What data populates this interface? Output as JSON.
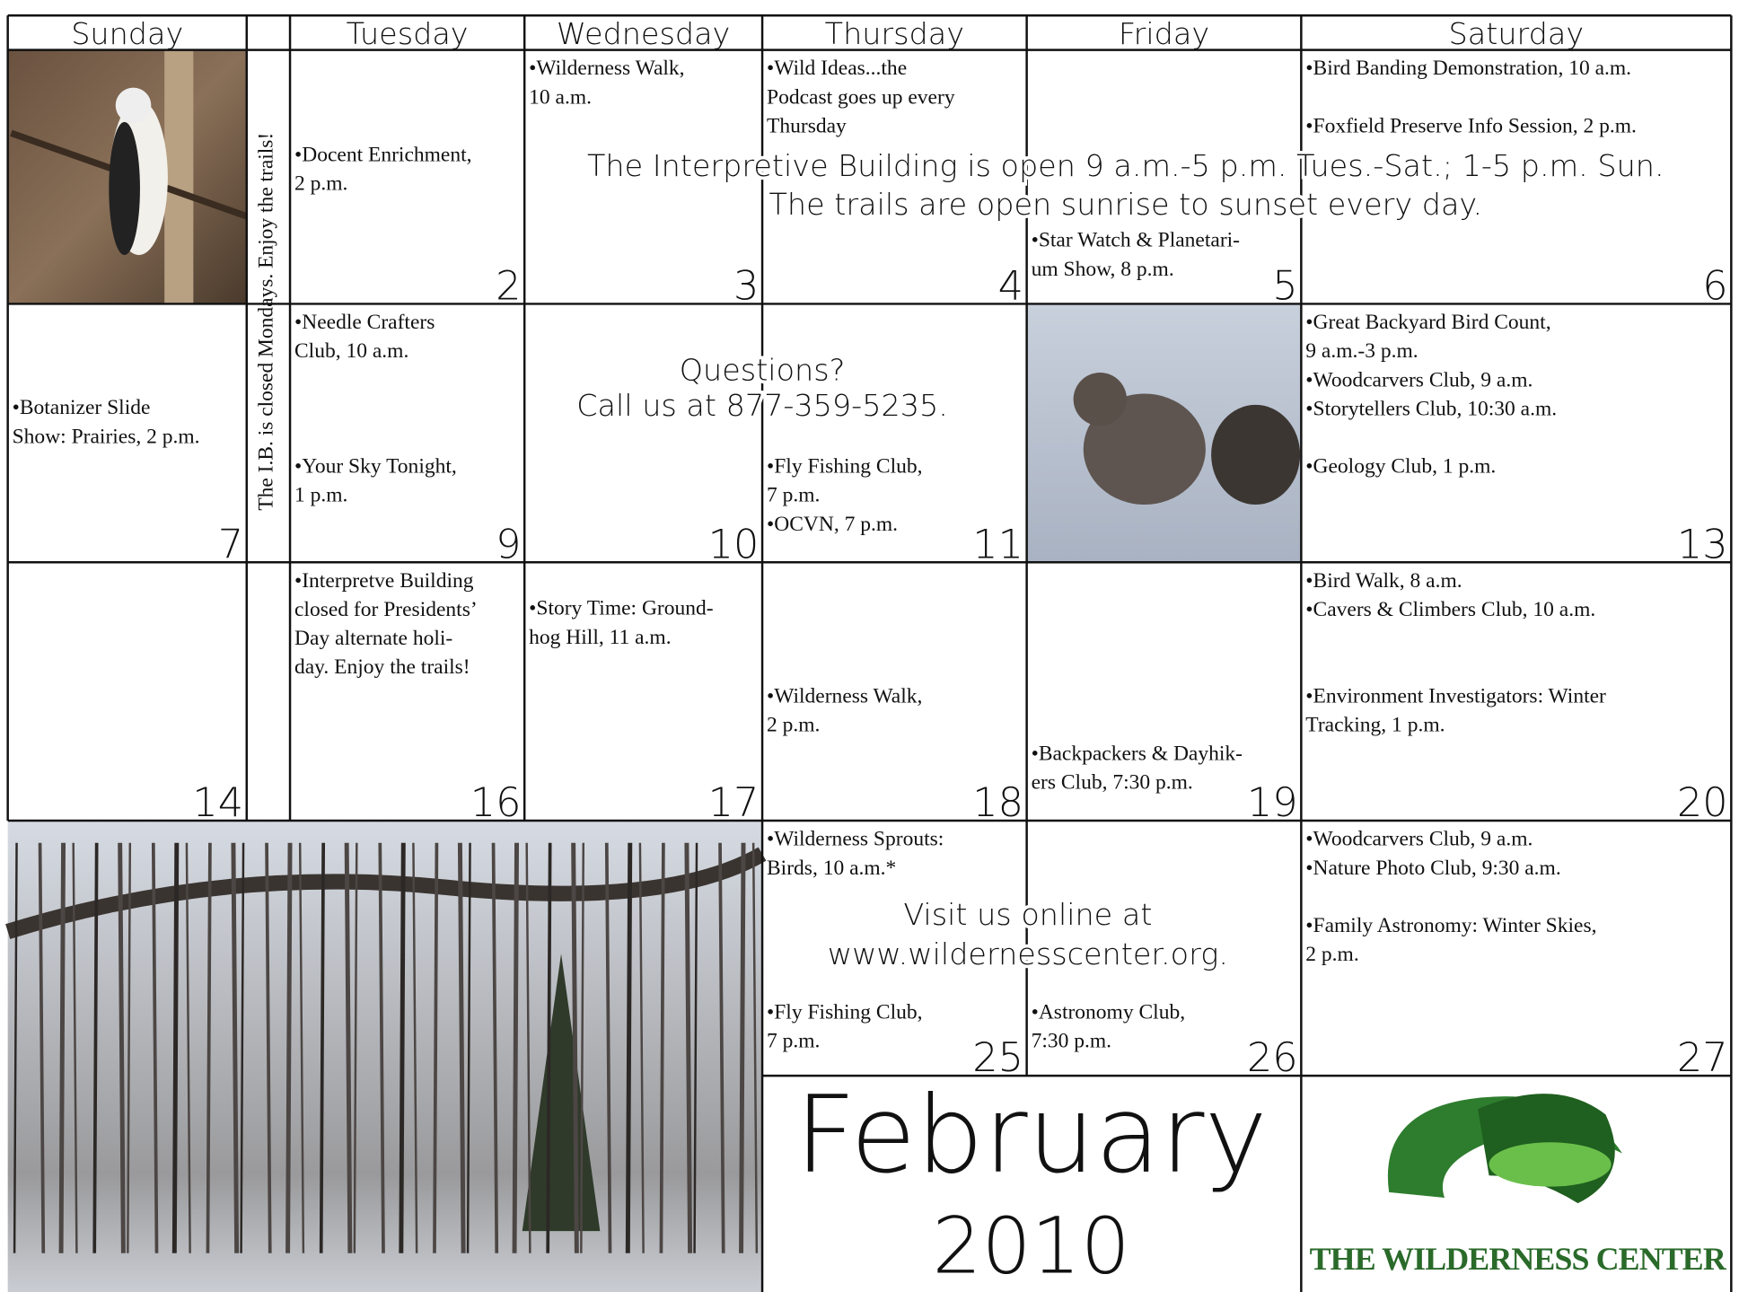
{
  "headers": [
    "Sunday",
    "Tuesday",
    "Wednesday",
    "Thursday",
    "Friday",
    "Saturday"
  ],
  "side_note": "The I.B. is closed Mondays. Enjoy the trails!",
  "cells": [
    {
      "day": 2,
      "events": [
        [
          "•Docent Enrichment,",
          "2 p.m."
        ]
      ]
    },
    {
      "day": 3,
      "events": [
        [
          "•Wilderness Walk,",
          "10 a.m."
        ]
      ]
    },
    {
      "day": 4,
      "events": [
        [
          "•Wild Ideas...the",
          "Podcast goes up every",
          "Thursday"
        ]
      ]
    },
    {
      "day": 5,
      "events": [
        [
          "•Star Watch & Planetari-",
          "um Show, 8 p.m."
        ]
      ]
    },
    {
      "day": 6,
      "events": [
        [
          "•Bird Banding Demonstration, 10 a.m."
        ],
        [
          "•Foxfield Preserve Info Session, 2 p.m."
        ]
      ]
    },
    {
      "day": 7,
      "events": [
        [
          "•Botanizer Slide",
          "Show: Prairies, 2 p.m."
        ]
      ]
    },
    {
      "day": 9,
      "events": [
        [
          "•Needle Crafters",
          "Club, 10 a.m."
        ],
        [
          "•Your Sky Tonight,",
          "1 p.m."
        ]
      ]
    },
    {
      "day": 10,
      "events": []
    },
    {
      "day": 11,
      "events": [
        [
          "•Fly Fishing Club,",
          "7 p.m."
        ],
        [
          "•OCVN, 7 p.m."
        ]
      ]
    },
    {
      "day": 13,
      "events": [
        [
          "•Great Backyard Bird Count,",
          "9 a.m.-3 p.m."
        ],
        [
          "•Woodcarvers Club, 9 a.m."
        ],
        [
          "•Storytellers Club, 10:30 a.m."
        ],
        [
          "•Geology Club, 1 p.m."
        ]
      ]
    },
    {
      "day": 14,
      "events": []
    },
    {
      "day": 16,
      "events": [
        [
          "•Interpretve Building",
          "closed for Presidents’",
          "Day alternate holi-",
          "day. Enjoy the trails!"
        ]
      ]
    },
    {
      "day": 17,
      "events": [
        [
          "•Story Time: Ground-",
          "hog Hill, 11 a.m."
        ]
      ]
    },
    {
      "day": 18,
      "events": [
        [
          "•Wilderness Walk,",
          "2 p.m."
        ]
      ]
    },
    {
      "day": 19,
      "events": [
        [
          "•Backpackers & Dayhik-",
          "ers Club, 7:30 p.m."
        ]
      ]
    },
    {
      "day": 20,
      "events": [
        [
          "•Bird Walk, 8 a.m."
        ],
        [
          "•Cavers & Climbers Club, 10 a.m."
        ],
        [
          "•Environment Investigators: Winter",
          "Tracking, 1 p.m."
        ]
      ]
    },
    {
      "day": 25,
      "events": [
        [
          "•Wilderness Sprouts:",
          "Birds, 10 a.m.*"
        ],
        [
          "•Fly Fishing Club,",
          "7 p.m."
        ]
      ]
    },
    {
      "day": 26,
      "events": [
        [
          "•Astronomy Club,",
          "7:30 p.m."
        ]
      ]
    },
    {
      "day": 27,
      "events": [
        [
          "•Woodcarvers Club, 9 a.m."
        ],
        [
          "•Nature Photo Club, 9:30 a.m."
        ],
        [
          "•Family Astronomy: Winter Skies,",
          "2 p.m."
        ]
      ]
    }
  ],
  "notices": [
    [
      "The Interpretive Building is open 9 a.m.-5 p.m. Tues.-Sat.; 1-5 p.m. Sun.",
      "The trails are open sunrise to sunset every day."
    ],
    [
      "Questions?",
      "Call us at 877-359-5235."
    ],
    [
      "Visit us online at",
      "www.wildernesscenter.org."
    ]
  ],
  "month": "February",
  "year": "2010",
  "logo": "THE WILDERNESS CENTER"
}
